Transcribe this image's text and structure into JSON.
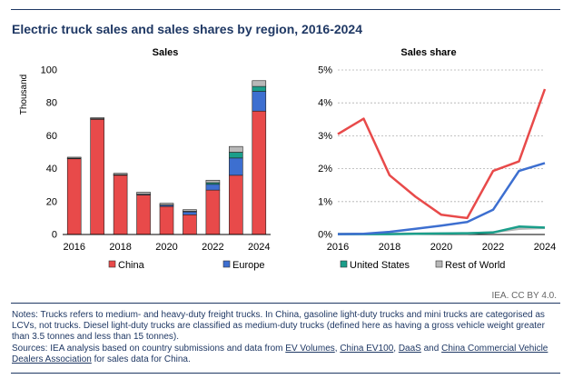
{
  "title": "Electric truck sales and sales shares by region, 2016-2024",
  "credit": "IEA. CC BY 4.0.",
  "notes": "Notes: Trucks refers to medium- and heavy-duty freight trucks. In China, gasoline light-duty trucks and mini trucks are categorised as LCVs, not trucks. Diesel light-duty trucks are classified as medium-duty trucks (defined here as having a gross vehicle weight greater than 3.5 tonnes and less than 15 tonnes).",
  "sources": {
    "prefix": "Sources: IEA analysis based on country submissions and data from ",
    "link1": "EV Volumes",
    "sep1": ", ",
    "link2": "China EV100",
    "sep2": ", ",
    "link3": "DaaS",
    "sep3": " and ",
    "link4": "China Commercial Vehicle Dealers Association",
    "suffix": " for sales data for China."
  },
  "colors": {
    "China": "#e84a4a",
    "Europe": "#3d6fd0",
    "United States": "#1a9e8a",
    "Rest of World": "#b8b8b8"
  },
  "chart_data": [
    {
      "type": "bar",
      "stacked": true,
      "title": "Sales",
      "ylabel": "Thousand",
      "ylim": [
        0,
        100
      ],
      "yticks": [
        0,
        20,
        40,
        60,
        80,
        100
      ],
      "categories": [
        "2016",
        "2017",
        "2018",
        "2019",
        "2020",
        "2021",
        "2022",
        "2023",
        "2024"
      ],
      "xtick_labels": [
        "2016",
        "",
        "2018",
        "",
        "2020",
        "",
        "2022",
        "",
        "2024"
      ],
      "series": [
        {
          "name": "China",
          "values": [
            46,
            70,
            36,
            24,
            17,
            12,
            27,
            36,
            75
          ]
        },
        {
          "name": "Europe",
          "values": [
            0.3,
            0.3,
            0.3,
            0.4,
            0.8,
            1.8,
            3.5,
            10.5,
            12
          ]
        },
        {
          "name": "United States",
          "values": [
            0.1,
            0.1,
            0.1,
            0.1,
            0.2,
            0.3,
            1,
            3.5,
            3
          ]
        },
        {
          "name": "Rest of World",
          "values": [
            0.6,
            0.6,
            0.8,
            1.2,
            1,
            1,
            1.5,
            3.5,
            3.5
          ]
        }
      ]
    },
    {
      "type": "line",
      "title": "Sales share",
      "ylim": [
        0,
        5
      ],
      "yticks": [
        "0%",
        "1%",
        "2%",
        "3%",
        "4%",
        "5%"
      ],
      "x": [
        2016,
        2017,
        2018,
        2019,
        2020,
        2021,
        2022,
        2023,
        2024
      ],
      "xtick_labels": [
        "2016",
        "",
        "2018",
        "",
        "2020",
        "",
        "2022",
        "",
        "2024"
      ],
      "series": [
        {
          "name": "China",
          "values": [
            3.05,
            3.52,
            1.8,
            1.15,
            0.6,
            0.5,
            1.93,
            2.22,
            4.42
          ]
        },
        {
          "name": "Europe",
          "values": [
            0.01,
            0.02,
            0.08,
            0.17,
            0.27,
            0.38,
            0.75,
            1.93,
            2.17
          ]
        },
        {
          "name": "United States",
          "values": [
            0.01,
            0.01,
            0.01,
            0.02,
            0.03,
            0.04,
            0.06,
            0.24,
            0.21
          ]
        },
        {
          "name": "Rest of World",
          "values": [
            0.02,
            0.02,
            0.02,
            0.03,
            0.03,
            0.03,
            0.07,
            0.17,
            0.2
          ]
        }
      ]
    }
  ],
  "legend": [
    {
      "name": "China"
    },
    {
      "name": "Europe"
    },
    {
      "name": "United States"
    },
    {
      "name": "Rest of World"
    }
  ]
}
